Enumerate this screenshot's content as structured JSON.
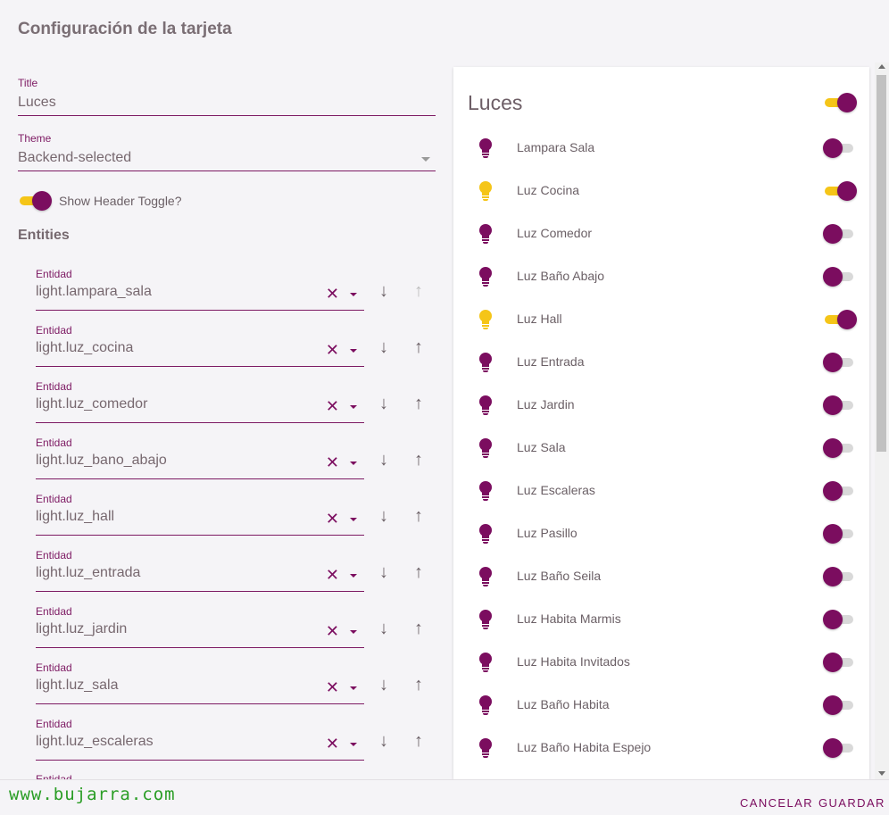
{
  "dialog": {
    "title": "Configuración de la tarjeta"
  },
  "editor": {
    "title_field": {
      "label": "Title",
      "value": "Luces"
    },
    "theme_field": {
      "label": "Theme",
      "value": "Backend-selected"
    },
    "header_toggle": {
      "label": "Show Header Toggle?",
      "on": true
    },
    "entities_heading": "Entities",
    "entity_label": "Entidad",
    "entities": [
      {
        "value": "light.lampara_sala"
      },
      {
        "value": "light.luz_cocina"
      },
      {
        "value": "light.luz_comedor"
      },
      {
        "value": "light.luz_bano_abajo"
      },
      {
        "value": "light.luz_hall"
      },
      {
        "value": "light.luz_entrada"
      },
      {
        "value": "light.luz_jardin"
      },
      {
        "value": "light.luz_sala"
      },
      {
        "value": "light.luz_escaleras"
      }
    ],
    "clear_icon": "✕",
    "down_icon": "↓",
    "up_icon": "↑"
  },
  "preview": {
    "title": "Luces",
    "header_toggle_on": true,
    "lights": [
      {
        "name": "Lampara Sala",
        "on": false
      },
      {
        "name": "Luz Cocina",
        "on": true
      },
      {
        "name": "Luz Comedor",
        "on": false
      },
      {
        "name": "Luz Baño Abajo",
        "on": false
      },
      {
        "name": "Luz Hall",
        "on": true
      },
      {
        "name": "Luz Entrada",
        "on": false
      },
      {
        "name": "Luz Jardin",
        "on": false
      },
      {
        "name": "Luz Sala",
        "on": false
      },
      {
        "name": "Luz Escaleras",
        "on": false
      },
      {
        "name": "Luz Pasillo",
        "on": false
      },
      {
        "name": "Luz Baño Seila",
        "on": false
      },
      {
        "name": "Luz Habita Marmis",
        "on": false
      },
      {
        "name": "Luz Habita Invitados",
        "on": false
      },
      {
        "name": "Luz Baño Habita",
        "on": false
      },
      {
        "name": "Luz Baño Habita Espejo",
        "on": false
      }
    ]
  },
  "footer": {
    "watermark": "www.bujarra.com",
    "cancel_label": "CANCELAR",
    "save_label": "GUARDAR"
  },
  "colors": {
    "accent": "#7b0d5f",
    "on_light": "#f5c518",
    "off_light": "#7b0d5f",
    "toggle_on_track": "#f5c518",
    "watermark": "#2a9d25"
  }
}
